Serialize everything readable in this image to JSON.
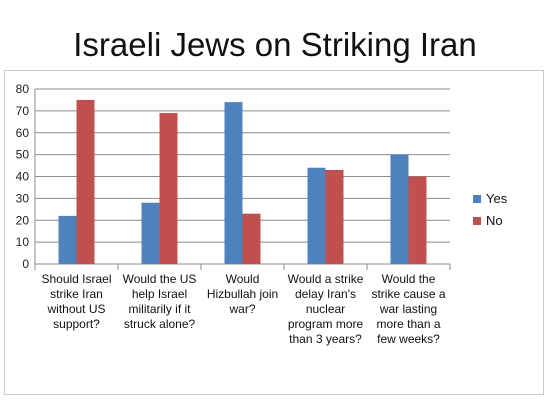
{
  "chart_data": {
    "type": "bar",
    "title": "Israeli Jews on Striking Iran",
    "categories": [
      [
        "Should Israel",
        "strike Iran",
        "without US",
        "support?"
      ],
      [
        "Would the US",
        "help Israel",
        "militarily if it",
        "struck alone?"
      ],
      [
        "Would",
        "Hizbullah join",
        "war?"
      ],
      [
        "Would a strike",
        "delay Iran's",
        "nuclear",
        "program more",
        "than 3 years?"
      ],
      [
        "Would the",
        "strike cause a",
        "war lasting",
        "more than a",
        "few weeks?"
      ]
    ],
    "series": [
      {
        "name": "Yes",
        "color": "#4f81bd",
        "values": [
          22,
          28,
          74,
          44,
          50
        ]
      },
      {
        "name": "No",
        "color": "#c0504d",
        "values": [
          75,
          69,
          23,
          43,
          40
        ]
      }
    ],
    "ylim": [
      0,
      80
    ],
    "yticks": [
      0,
      10,
      20,
      30,
      40,
      50,
      60,
      70,
      80
    ],
    "grid": true,
    "legend": "right"
  }
}
